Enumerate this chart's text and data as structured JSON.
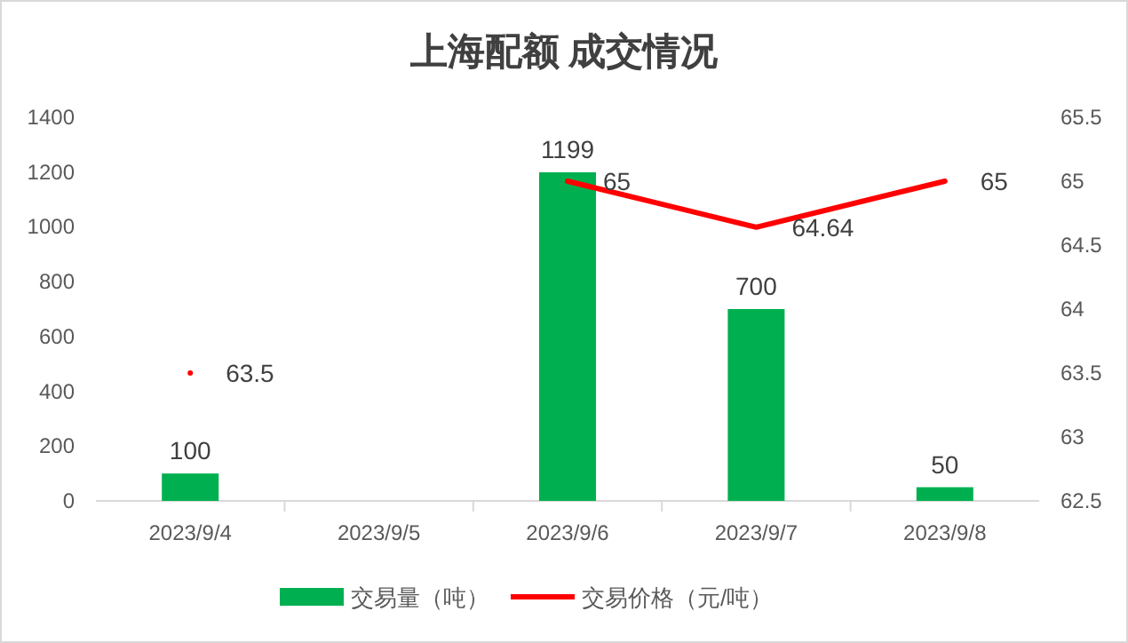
{
  "chart_data": {
    "type": "bar",
    "title": "上海配额 成交情况",
    "categories": [
      "2023/9/4",
      "2023/9/5",
      "2023/9/6",
      "2023/9/7",
      "2023/9/8"
    ],
    "series": [
      {
        "name": "交易量（吨）",
        "color": "#00b050",
        "values": [
          100,
          null,
          1199,
          700,
          50
        ]
      },
      {
        "name": "交易价格（元/吨）",
        "type": "line",
        "axis": "y2",
        "color": "#ff0000",
        "values": [
          63.5,
          null,
          65,
          64.64,
          65
        ]
      }
    ],
    "ylim": [
      0,
      1400
    ],
    "yticks": [
      0,
      200,
      400,
      600,
      800,
      1000,
      1200,
      1400
    ],
    "y2lim": [
      62.5,
      65.5
    ],
    "y2ticks": [
      62.5,
      63,
      63.5,
      64,
      64.5,
      65,
      65.5
    ],
    "data_labels": true,
    "legend": "bottom",
    "grid": false,
    "marker": "none",
    "line_style": "solid"
  }
}
